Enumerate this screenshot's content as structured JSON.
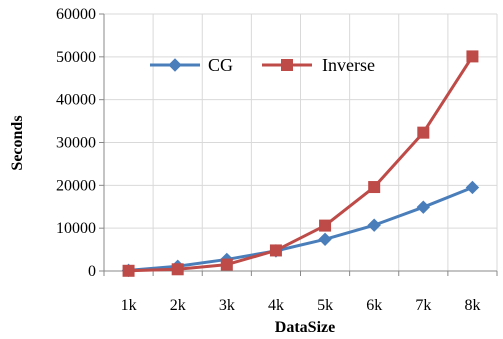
{
  "chart_data": {
    "type": "line",
    "title": "",
    "xlabel": "DataSize",
    "ylabel": "Seconds",
    "categories": [
      "1k",
      "2k",
      "3k",
      "4k",
      "5k",
      "6k",
      "7k",
      "8k"
    ],
    "ylim": [
      0,
      60000
    ],
    "yticks": [
      0,
      10000,
      20000,
      30000,
      40000,
      50000,
      60000
    ],
    "grid": true,
    "legend_position": "top-left",
    "series": [
      {
        "name": "CG",
        "color": "#4a7ebb",
        "marker": "diamond",
        "values": [
          150,
          1100,
          2700,
          4700,
          7400,
          10700,
          14900,
          19500
        ]
      },
      {
        "name": "Inverse",
        "color": "#be4b48",
        "marker": "square",
        "values": [
          50,
          400,
          1500,
          4800,
          10600,
          19600,
          32300,
          50100
        ]
      }
    ]
  }
}
